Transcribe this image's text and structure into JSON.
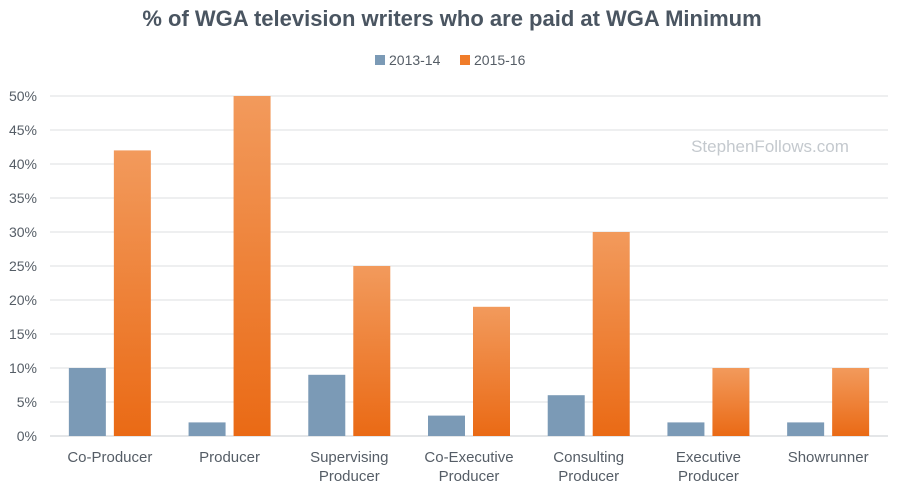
{
  "chart_data": {
    "type": "bar",
    "title": "% of WGA television writers who are paid at WGA Minimum",
    "categories": [
      [
        "Co-Producer"
      ],
      [
        "Producer"
      ],
      [
        "Supervising",
        "Producer"
      ],
      [
        "Co-Executive",
        "Producer"
      ],
      [
        "Consulting",
        "Producer"
      ],
      [
        "Executive",
        "Producer"
      ],
      [
        "Showrunner"
      ]
    ],
    "series": [
      {
        "name": "2013-14",
        "values": [
          10,
          2,
          9,
          3,
          6,
          2,
          2
        ],
        "color": "#7b9ab6"
      },
      {
        "name": "2015-16",
        "values": [
          42,
          50,
          25,
          19,
          30,
          10,
          10
        ],
        "color": "#f07c2a",
        "color_top": "#f29a5c",
        "color_bottom": "#ea6a15"
      }
    ],
    "ylim": [
      0,
      50
    ],
    "yticks": [
      "0%",
      "5%",
      "10%",
      "15%",
      "20%",
      "25%",
      "30%",
      "35%",
      "40%",
      "45%",
      "50%"
    ],
    "ytick_values": [
      0,
      5,
      10,
      15,
      20,
      25,
      30,
      35,
      40,
      45,
      50
    ],
    "grid": true,
    "legend_position": "top-center",
    "watermark": "StephenFollows.com"
  }
}
